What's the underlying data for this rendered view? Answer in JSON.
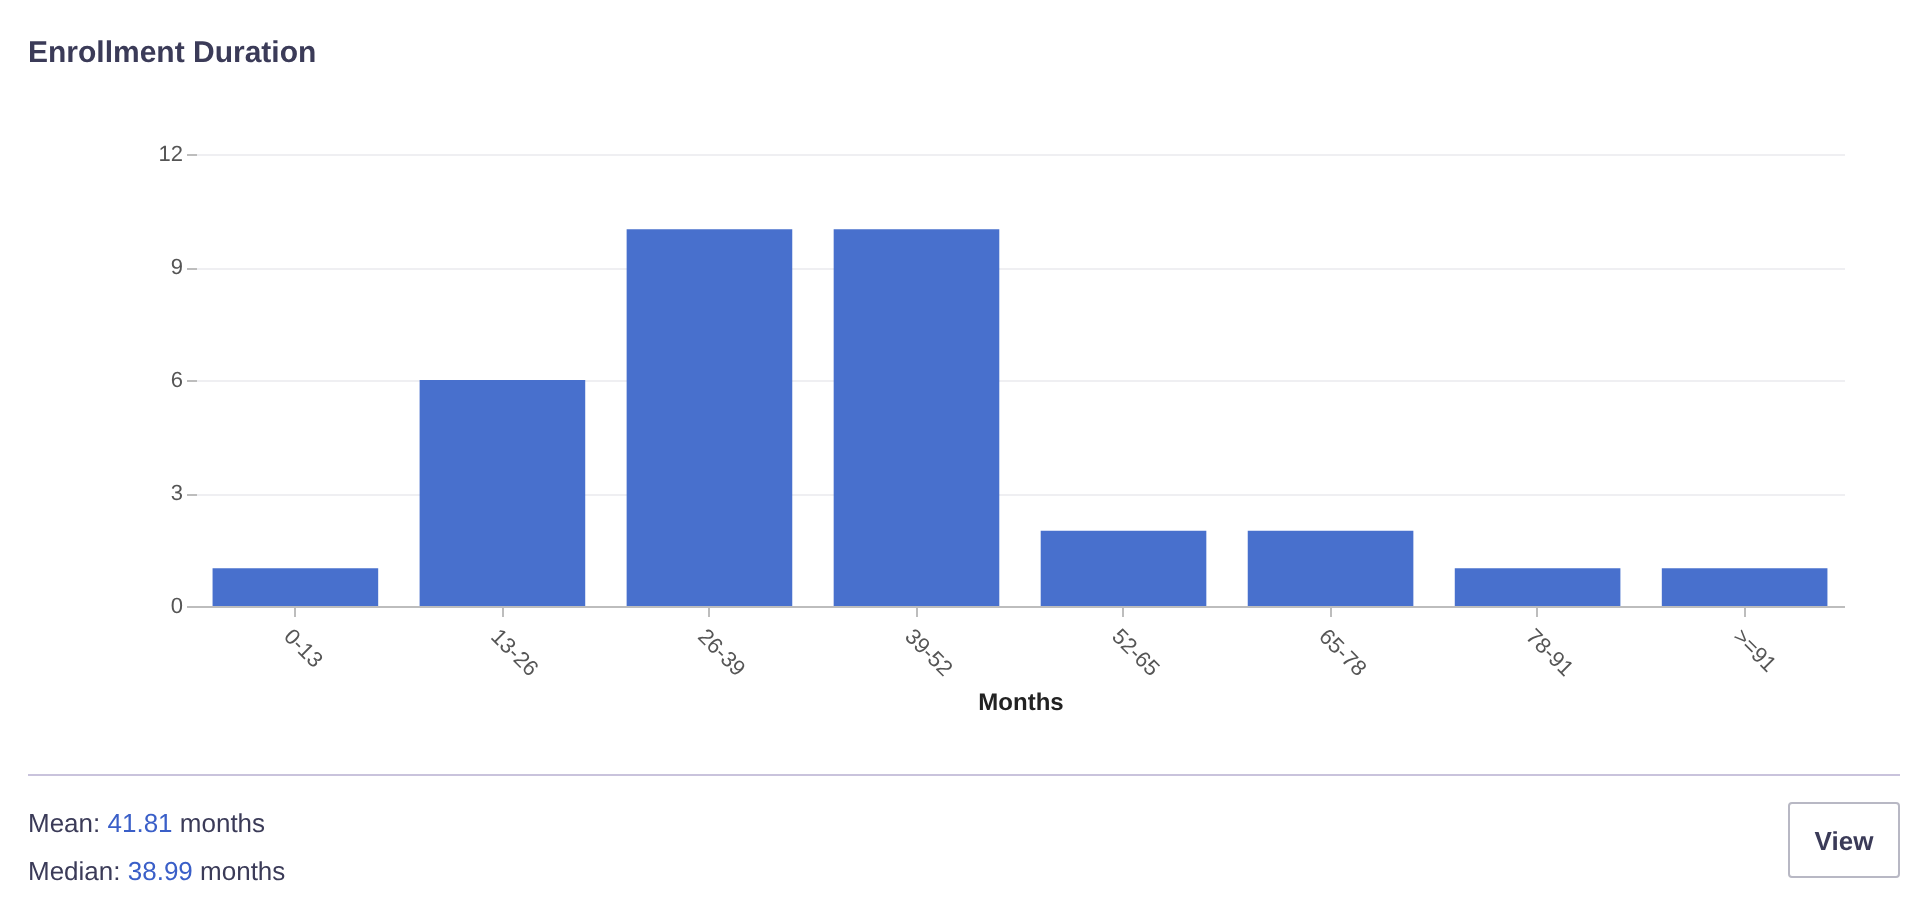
{
  "chart_data": {
    "type": "bar",
    "title": "Enrollment Duration",
    "xlabel": "Months",
    "categories": [
      "0-13",
      "13-26",
      "26-39",
      "39-52",
      "52-65",
      "65-78",
      "78-91",
      ">=91"
    ],
    "values": [
      1,
      6,
      10,
      10,
      2,
      2,
      1,
      1
    ],
    "color": "#4870cd",
    "ylim": [
      0,
      12
    ],
    "yticks": [
      0,
      3,
      6,
      9,
      12
    ],
    "grid": "y",
    "annotations": [
      "Mean: 41.81 months",
      "Median: 38.99 months",
      "View"
    ]
  }
}
